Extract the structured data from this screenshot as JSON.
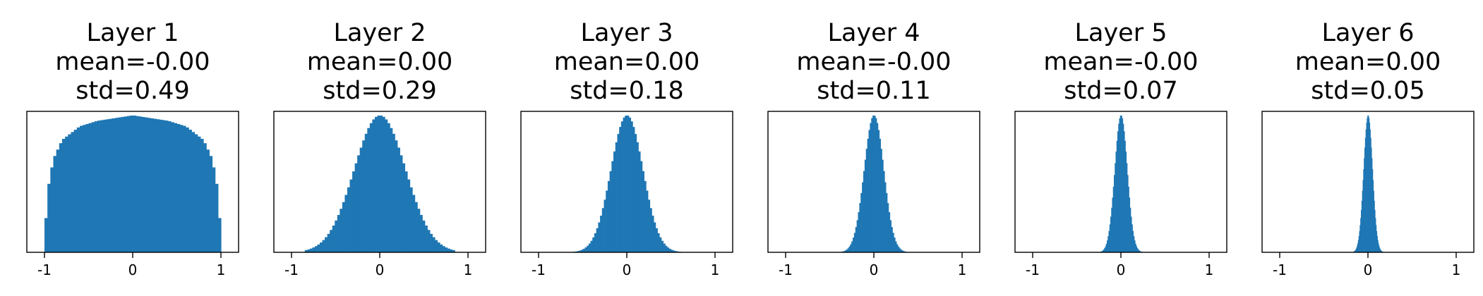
{
  "colors": {
    "bar": "#1f77b4",
    "axes": "#000000",
    "background": "#ffffff"
  },
  "chart_data": [
    {
      "type": "bar",
      "title": [
        "Layer 1",
        "mean=-0.00",
        "std=0.49"
      ],
      "xlim": [
        -1.2,
        1.2
      ],
      "xticks": [
        -1,
        0,
        1
      ],
      "xtick_labels": [
        "-1",
        "0",
        "1"
      ],
      "yticks": [],
      "grid": false,
      "distribution": "near-uniform with rounded shoulders",
      "range": [
        -1,
        1
      ],
      "std": 0.49,
      "bins": 60,
      "relative_density": {
        "x": [
          -1.0,
          -0.98,
          -0.95,
          -0.9,
          -0.8,
          -0.6,
          -0.4,
          -0.2,
          0.0,
          0.2,
          0.4,
          0.6,
          0.8,
          0.9,
          0.95,
          0.98,
          1.0
        ],
        "y": [
          0.0,
          0.3,
          0.5,
          0.68,
          0.82,
          0.92,
          0.96,
          0.98,
          1.0,
          0.98,
          0.96,
          0.92,
          0.82,
          0.68,
          0.5,
          0.3,
          0.0
        ]
      }
    },
    {
      "type": "bar",
      "title": [
        "Layer 2",
        "mean=0.00",
        "std=0.29"
      ],
      "xlim": [
        -1.2,
        1.2
      ],
      "xticks": [
        -1,
        0,
        1
      ],
      "xtick_labels": [
        "-1",
        "0",
        "1"
      ],
      "yticks": [],
      "grid": false,
      "distribution": "bell-shaped",
      "range": [
        -0.85,
        0.85
      ],
      "std": 0.29,
      "bins": 60
    },
    {
      "type": "bar",
      "title": [
        "Layer 3",
        "mean=0.00",
        "std=0.18"
      ],
      "xlim": [
        -1.2,
        1.2
      ],
      "xticks": [
        -1,
        0,
        1
      ],
      "xtick_labels": [
        "-1",
        "0",
        "1"
      ],
      "yticks": [],
      "grid": false,
      "distribution": "bell-shaped",
      "range": [
        -0.65,
        0.65
      ],
      "std": 0.18,
      "bins": 60
    },
    {
      "type": "bar",
      "title": [
        "Layer 4",
        "mean=-0.00",
        "std=0.11"
      ],
      "xlim": [
        -1.2,
        1.2
      ],
      "xticks": [
        -1,
        0,
        1
      ],
      "xtick_labels": [
        "-1",
        "0",
        "1"
      ],
      "yticks": [],
      "grid": false,
      "distribution": "bell-shaped",
      "range": [
        -0.45,
        0.45
      ],
      "std": 0.11,
      "bins": 60
    },
    {
      "type": "bar",
      "title": [
        "Layer 5",
        "mean=-0.00",
        "std=0.07"
      ],
      "xlim": [
        -1.2,
        1.2
      ],
      "xticks": [
        -1,
        0,
        1
      ],
      "xtick_labels": [
        "-1",
        "0",
        "1"
      ],
      "yticks": [],
      "grid": false,
      "distribution": "bell-shaped",
      "range": [
        -0.3,
        0.3
      ],
      "std": 0.07,
      "bins": 60
    },
    {
      "type": "bar",
      "title": [
        "Layer 6",
        "mean=0.00",
        "std=0.05"
      ],
      "xlim": [
        -1.2,
        1.2
      ],
      "xticks": [
        -1,
        0,
        1
      ],
      "xtick_labels": [
        "-1",
        "0",
        "1"
      ],
      "yticks": [],
      "grid": false,
      "distribution": "bell-shaped",
      "range": [
        -0.2,
        0.2
      ],
      "std": 0.05,
      "bins": 60
    }
  ]
}
